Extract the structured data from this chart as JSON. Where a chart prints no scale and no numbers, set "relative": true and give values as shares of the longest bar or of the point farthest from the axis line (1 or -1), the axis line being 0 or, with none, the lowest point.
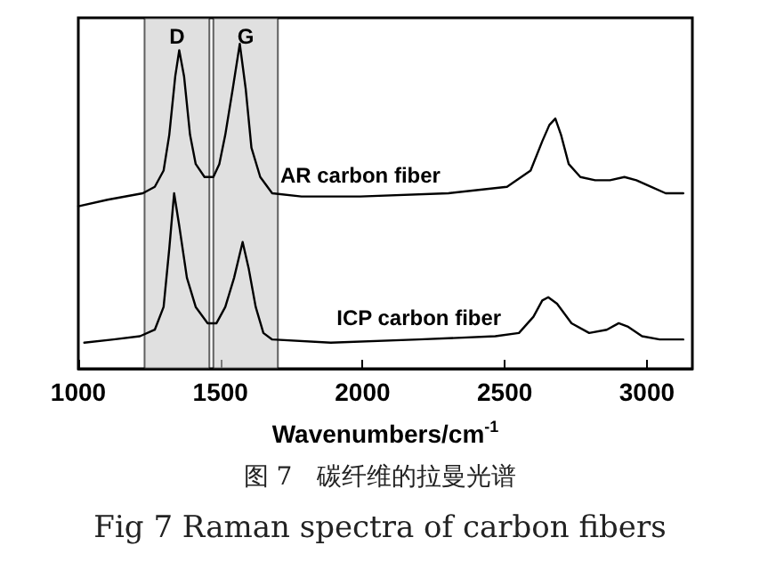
{
  "chart_data": {
    "type": "line",
    "title": "图 7　碳纤维的拉曼光谱",
    "subtitle": "Fig 7 Raman spectra of carbon fibers",
    "xlabel": "Wavenumbers/cm$^{-1}$",
    "relative": true,
    "xlim": [
      1000,
      3160
    ],
    "xticks": [
      1000,
      1500,
      2000,
      2500,
      3000
    ],
    "grid": false,
    "legend": false,
    "tick_labels": "x",
    "series": [
      {
        "name": "AR carbon fiber",
        "color": "#000000",
        "x": [
          1000,
          1103,
          1227,
          1269,
          1300,
          1320,
          1341,
          1355,
          1372,
          1393,
          1413,
          1444,
          1475,
          1496,
          1517,
          1543,
          1568,
          1589,
          1609,
          1640,
          1682,
          1785,
          1992,
          2302,
          2508,
          2591,
          2632,
          2657,
          2678,
          2698,
          2725,
          2766,
          2818,
          2870,
          2921,
          2963,
          3014,
          3066,
          3128
        ],
        "values": [
          0.5,
          0.52,
          0.54,
          0.56,
          0.61,
          0.72,
          0.9,
          0.98,
          0.9,
          0.72,
          0.63,
          0.59,
          0.59,
          0.63,
          0.72,
          0.86,
          1.0,
          0.86,
          0.68,
          0.59,
          0.54,
          0.53,
          0.53,
          0.54,
          0.56,
          0.61,
          0.7,
          0.75,
          0.77,
          0.72,
          0.63,
          0.59,
          0.58,
          0.58,
          0.59,
          0.58,
          0.56,
          0.54,
          0.54
        ]
      },
      {
        "name": "ICP carbon fiber",
        "color": "#000000",
        "x": [
          1021,
          1124,
          1217,
          1269,
          1300,
          1320,
          1337,
          1355,
          1382,
          1413,
          1455,
          1486,
          1517,
          1548,
          1578,
          1599,
          1624,
          1651,
          1682,
          1888,
          2198,
          2467,
          2550,
          2601,
          2632,
          2653,
          2684,
          2735,
          2797,
          2859,
          2901,
          2932,
          2983,
          3045,
          3128
        ],
        "values": [
          0.08,
          0.09,
          0.1,
          0.12,
          0.19,
          0.37,
          0.54,
          0.44,
          0.28,
          0.19,
          0.14,
          0.14,
          0.19,
          0.28,
          0.39,
          0.31,
          0.19,
          0.11,
          0.09,
          0.08,
          0.09,
          0.1,
          0.11,
          0.16,
          0.21,
          0.22,
          0.2,
          0.14,
          0.11,
          0.12,
          0.14,
          0.13,
          0.1,
          0.09,
          0.09
        ]
      }
    ],
    "bands": [
      {
        "axis": "x",
        "from": 1233,
        "to": 1461,
        "label": "D",
        "color": "#cccccc"
      },
      {
        "axis": "x",
        "from": 1475,
        "to": 1702,
        "label": "G",
        "color": "#cccccc"
      }
    ]
  }
}
